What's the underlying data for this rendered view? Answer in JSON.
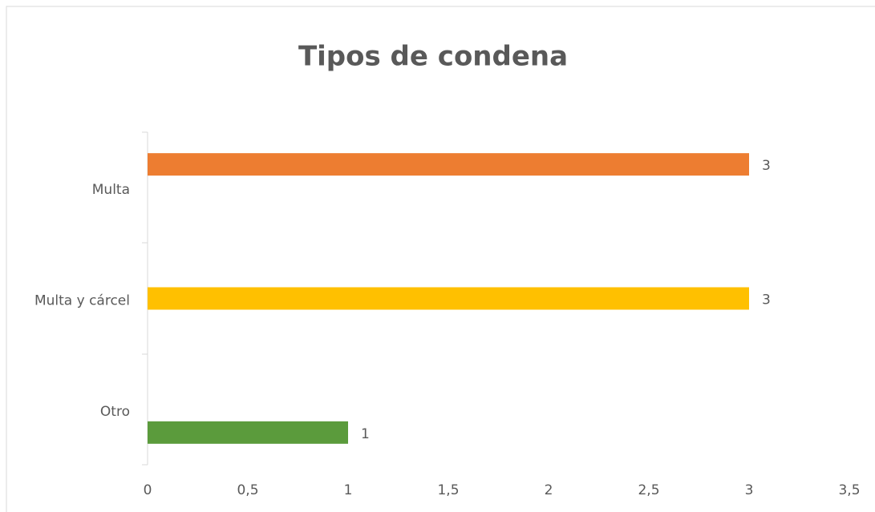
{
  "chart_data": {
    "type": "barh",
    "title": "Tipos de condena",
    "categories": [
      "Multa",
      "Multa y cárcel",
      "Otro"
    ],
    "values": [
      3,
      3,
      1
    ],
    "colors": [
      "#ed7d31",
      "#ffc000",
      "#5b9b3c"
    ],
    "xlim": [
      0,
      3.5
    ],
    "xticks": [
      0,
      {
        "value": 0.5,
        "label": "0,5"
      },
      1,
      {
        "value": 1.5,
        "label": "1,5"
      },
      2,
      {
        "value": 2.5,
        "label": "2,5"
      },
      3,
      {
        "value": 3.5,
        "label": "3,5"
      }
    ],
    "grid": false
  }
}
